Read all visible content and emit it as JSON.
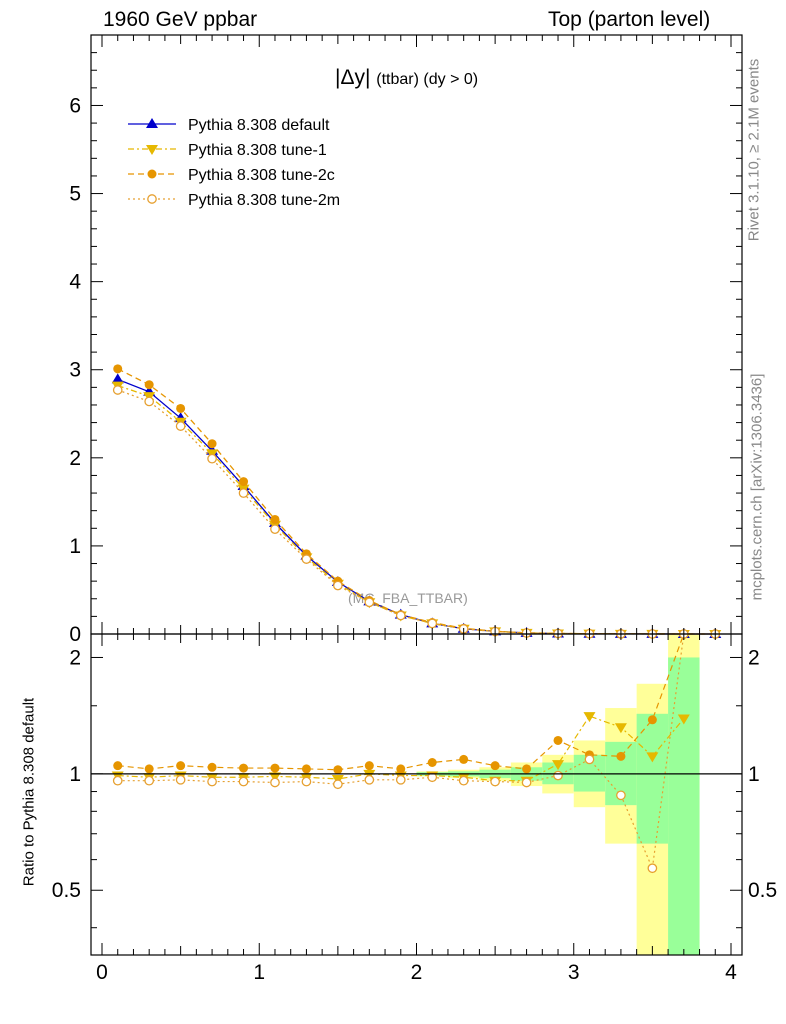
{
  "header": {
    "left_title": "1960 GeV ppbar",
    "right_title": "Top (parton level)"
  },
  "plot_title": {
    "symbol": "|Δy|",
    "rest": "(ttbar) (dy > 0)"
  },
  "side_labels": {
    "rivet": "Rivet 3.1.10, ≥ 2.1M events",
    "mcplots": "mcplots.cern.ch [arXiv:1306.3436]"
  },
  "watermark": "(MC_FBA_TTBAR)",
  "colors": {
    "default": "#0000cc",
    "tune1": "#e6b800",
    "tune2c": "#e69500",
    "tune2m": "#e6a030",
    "band_yellow": "#ffff99",
    "band_green": "#99ff99"
  },
  "chart_data": [
    {
      "type": "line",
      "panel": "main",
      "title": "|Δy| (ttbar) (dy > 0)",
      "xlim": [
        -0.07,
        4.07
      ],
      "ylim": [
        0,
        6.8
      ],
      "yticks": [
        "0",
        "1",
        "2",
        "3",
        "4",
        "5",
        "6"
      ],
      "xlabel": "",
      "ylabel": "",
      "legend_position": "top-left",
      "x": [
        0.1,
        0.3,
        0.5,
        0.7,
        0.9,
        1.1,
        1.3,
        1.5,
        1.7,
        1.9,
        2.1,
        2.3,
        2.5,
        2.7,
        2.9,
        3.1,
        3.3,
        3.5,
        3.7,
        3.9
      ],
      "series": [
        {
          "name": "Pythia 8.308 default",
          "key": "default",
          "marker": "triangle-up",
          "values": [
            2.89,
            2.75,
            2.45,
            2.08,
            1.68,
            1.26,
            0.89,
            0.59,
            0.37,
            0.22,
            0.12,
            0.06,
            0.03,
            0.013,
            0.006,
            0.003,
            0.0015,
            0.0008,
            0.0004,
            0.0002
          ]
        },
        {
          "name": "Pythia 8.308 tune-1",
          "key": "tune1",
          "marker": "triangle-down",
          "values": [
            2.82,
            2.7,
            2.41,
            2.05,
            1.65,
            1.24,
            0.87,
            0.57,
            0.36,
            0.21,
            0.12,
            0.06,
            0.03,
            0.013,
            0.006,
            0.004,
            0.002,
            0.001,
            0.0005,
            0.0002
          ]
        },
        {
          "name": "Pythia 8.308 tune-2c",
          "key": "tune2c",
          "marker": "circle",
          "values": [
            3.01,
            2.83,
            2.56,
            2.16,
            1.73,
            1.3,
            0.91,
            0.6,
            0.38,
            0.22,
            0.13,
            0.065,
            0.031,
            0.013,
            0.007,
            0.003,
            0.0017,
            0.001,
            0.0005,
            0.0002
          ]
        },
        {
          "name": "Pythia 8.308 tune-2m",
          "key": "tune2m",
          "marker": "open-circle",
          "values": [
            2.77,
            2.64,
            2.36,
            1.99,
            1.6,
            1.19,
            0.85,
            0.55,
            0.36,
            0.21,
            0.12,
            0.058,
            0.028,
            0.012,
            0.006,
            0.003,
            0.0013,
            0.0005,
            0.0003,
            0.0001
          ]
        }
      ]
    },
    {
      "type": "line",
      "panel": "ratio",
      "ylabel": "Ratio to Pythia 8.308 default",
      "xlim": [
        -0.07,
        4.07
      ],
      "ylim": [
        0.34,
        2.3
      ],
      "yticks": [
        "0.5",
        "1",
        "2"
      ],
      "yticks_values": [
        0.5,
        1,
        2
      ],
      "xticks": [
        "0",
        "1",
        "2",
        "3",
        "4"
      ],
      "xticks_values": [
        0,
        1,
        2,
        3,
        4
      ],
      "x": [
        0.1,
        0.3,
        0.5,
        0.7,
        0.9,
        1.1,
        1.3,
        1.5,
        1.7,
        1.9,
        2.1,
        2.3,
        2.5,
        2.7,
        2.9,
        3.1,
        3.3,
        3.5,
        3.7,
        3.9
      ],
      "bands": [
        {
          "x0": 2.0,
          "x1": 2.2,
          "yellow": [
            0.985,
            1.015
          ],
          "green": [
            0.99,
            1.01
          ]
        },
        {
          "x0": 2.2,
          "x1": 2.4,
          "yellow": [
            0.975,
            1.025
          ],
          "green": [
            0.985,
            1.015
          ]
        },
        {
          "x0": 2.4,
          "x1": 2.6,
          "yellow": [
            0.96,
            1.04
          ],
          "green": [
            0.975,
            1.025
          ]
        },
        {
          "x0": 2.6,
          "x1": 2.8,
          "yellow": [
            0.93,
            1.07
          ],
          "green": [
            0.96,
            1.04
          ]
        },
        {
          "x0": 2.8,
          "x1": 3.0,
          "yellow": [
            0.89,
            1.12
          ],
          "green": [
            0.94,
            1.07
          ]
        },
        {
          "x0": 3.0,
          "x1": 3.2,
          "yellow": [
            0.82,
            1.22
          ],
          "green": [
            0.9,
            1.12
          ]
        },
        {
          "x0": 3.2,
          "x1": 3.4,
          "yellow": [
            0.66,
            1.48
          ],
          "green": [
            0.83,
            1.21
          ]
        },
        {
          "x0": 3.4,
          "x1": 3.6,
          "yellow": [
            0.34,
            1.71
          ],
          "green": [
            0.66,
            1.43
          ]
        },
        {
          "x0": 3.6,
          "x1": 3.8,
          "yellow": [
            0.34,
            2.3
          ],
          "green": [
            0.34,
            2.0
          ]
        }
      ],
      "series": [
        {
          "name": "Pythia 8.308 tune-1",
          "key": "tune1",
          "values": [
            0.99,
            0.98,
            0.99,
            0.98,
            0.98,
            0.985,
            0.98,
            0.97,
            1.0,
            0.99,
            0.99,
            0.98,
            0.96,
            0.96,
            1.06,
            1.41,
            1.32,
            1.11,
            1.39,
            null
          ]
        },
        {
          "name": "Pythia 8.308 tune-2c",
          "key": "tune2c",
          "values": [
            1.05,
            1.03,
            1.05,
            1.04,
            1.035,
            1.035,
            1.03,
            1.025,
            1.05,
            1.03,
            1.07,
            1.09,
            1.05,
            1.03,
            1.22,
            1.12,
            1.11,
            1.38,
            2.3,
            null
          ]
        },
        {
          "name": "Pythia 8.308 tune-2m",
          "key": "tune2m",
          "values": [
            0.96,
            0.96,
            0.965,
            0.955,
            0.955,
            0.95,
            0.955,
            0.94,
            0.965,
            0.965,
            0.98,
            0.96,
            0.955,
            0.95,
            0.99,
            1.09,
            0.88,
            0.57,
            2.3,
            null
          ]
        }
      ]
    }
  ]
}
